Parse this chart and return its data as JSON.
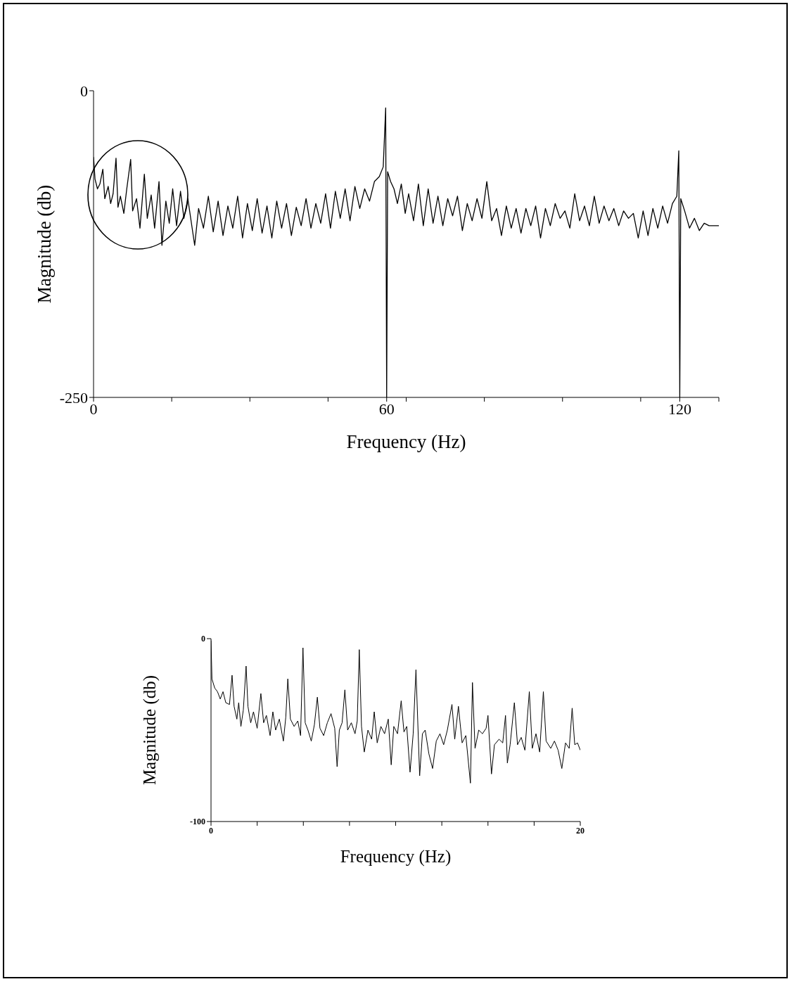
{
  "chart_data": [
    {
      "type": "line",
      "xlabel": "Frequency  (Hz)",
      "ylabel": "Magnitude (db)",
      "xlim": [
        0,
        128
      ],
      "ylim": [
        -250,
        0
      ],
      "xticks": [
        0,
        {
          "value": 16,
          "label": null
        },
        {
          "value": 32,
          "label": null
        },
        {
          "value": 48,
          "label": null
        },
        60,
        {
          "value": 64,
          "label": null
        },
        {
          "value": 80,
          "label": null
        },
        {
          "value": 96,
          "label": null
        },
        {
          "value": 112,
          "label": null
        },
        120,
        {
          "value": 128,
          "label": null
        }
      ],
      "yticks": [
        0,
        -250
      ],
      "x": [
        0,
        0.3,
        0.8,
        1.3,
        1.9,
        2.3,
        3.0,
        3.5,
        4.0,
        4.6,
        5.0,
        5.5,
        6.2,
        6.8,
        7.6,
        8.0,
        8.8,
        9.5,
        10.4,
        11.0,
        11.8,
        12.5,
        13.4,
        14.0,
        14.8,
        15.5,
        16.2,
        17.0,
        17.8,
        18.5,
        19.3,
        20.7,
        21.5,
        22.5,
        23.5,
        24.5,
        25.5,
        26.5,
        27.5,
        28.5,
        29.5,
        30.5,
        31.5,
        32.5,
        33.5,
        34.5,
        35.5,
        36.5,
        37.5,
        38.5,
        39.5,
        40.5,
        41.5,
        42.5,
        43.5,
        44.5,
        45.5,
        46.5,
        47.5,
        48.5,
        49.5,
        50.5,
        51.5,
        52.5,
        53.5,
        54.5,
        55.5,
        56.5,
        57.5,
        58.5,
        59.3,
        59.8,
        60.0,
        60.2,
        60.8,
        61.5,
        62.2,
        63.0,
        63.8,
        64.5,
        65.5,
        66.5,
        67.5,
        68.5,
        69.5,
        70.5,
        71.5,
        72.5,
        73.5,
        74.5,
        75.5,
        76.5,
        77.5,
        78.5,
        79.5,
        80.5,
        81.5,
        82.5,
        83.5,
        84.5,
        85.5,
        86.5,
        87.5,
        88.5,
        89.5,
        90.5,
        91.5,
        92.5,
        93.5,
        94.5,
        95.5,
        96.5,
        97.5,
        98.5,
        99.5,
        100.5,
        101.5,
        102.5,
        103.5,
        104.5,
        105.5,
        106.5,
        107.5,
        108.5,
        109.5,
        110.5,
        111.5,
        112.5,
        113.5,
        114.5,
        115.5,
        116.5,
        117.5,
        118.5,
        119.4,
        119.8,
        120.0,
        120.2,
        121,
        122,
        123,
        124,
        125,
        126,
        127,
        128
      ],
      "series": [
        {
          "color": "#000000",
          "values": [
            -54,
            -72,
            -80,
            -76,
            -64,
            -88,
            -78,
            -92,
            -84,
            -55,
            -95,
            -86,
            -100,
            -80,
            -56,
            -98,
            -88,
            -112,
            -68,
            -104,
            -85,
            -112,
            -74,
            -126,
            -90,
            -108,
            -80,
            -110,
            -82,
            -104,
            -88,
            -126,
            -96,
            -112,
            -86,
            -115,
            -90,
            -118,
            -94,
            -112,
            -86,
            -120,
            -92,
            -114,
            -88,
            -116,
            -94,
            -120,
            -90,
            -112,
            -92,
            -118,
            -95,
            -110,
            -88,
            -112,
            -92,
            -108,
            -84,
            -112,
            -82,
            -104,
            -80,
            -106,
            -78,
            -96,
            -80,
            -90,
            -74,
            -70,
            -62,
            -14,
            -250,
            -66,
            -74,
            -80,
            -92,
            -76,
            -100,
            -84,
            -106,
            -76,
            -110,
            -80,
            -108,
            -86,
            -110,
            -88,
            -102,
            -86,
            -114,
            -92,
            -106,
            -88,
            -104,
            -74,
            -106,
            -96,
            -118,
            -94,
            -112,
            -96,
            -116,
            -96,
            -110,
            -94,
            -120,
            -96,
            -110,
            -92,
            -104,
            -98,
            -112,
            -84,
            -106,
            -94,
            -110,
            -86,
            -108,
            -94,
            -106,
            -96,
            -110,
            -98,
            -104,
            -100,
            -120,
            -98,
            -118,
            -96,
            -112,
            -94,
            -108,
            -92,
            -86,
            -49,
            -250,
            -88,
            -98,
            -112,
            -104,
            -114,
            -108,
            -110,
            -110,
            -110
          ]
        }
      ]
    },
    {
      "type": "line",
      "xlabel": "Frequency  (Hz)",
      "ylabel": "Magnitude (db)",
      "xlim": [
        0,
        20
      ],
      "ylim": [
        -100,
        0
      ],
      "xticks": [
        0,
        {
          "value": 2.5,
          "label": null
        },
        {
          "value": 5,
          "label": null
        },
        {
          "value": 7.5,
          "label": null
        },
        {
          "value": 10,
          "label": null
        },
        {
          "value": 12.5,
          "label": null
        },
        {
          "value": 15,
          "label": null
        },
        {
          "value": 17.5,
          "label": null
        },
        20
      ],
      "yticks": [
        0,
        -100
      ],
      "x": [
        0,
        0.05,
        0.2,
        0.35,
        0.5,
        0.65,
        0.8,
        1.0,
        1.14,
        1.25,
        1.4,
        1.5,
        1.62,
        1.75,
        1.9,
        2.0,
        2.15,
        2.3,
        2.5,
        2.7,
        2.85,
        3.0,
        3.2,
        3.35,
        3.5,
        3.7,
        3.92,
        4.05,
        4.16,
        4.3,
        4.5,
        4.7,
        4.85,
        4.98,
        5.1,
        5.25,
        5.43,
        5.6,
        5.76,
        5.9,
        6.1,
        6.3,
        6.5,
        6.7,
        6.83,
        6.95,
        7.1,
        7.25,
        7.4,
        7.6,
        7.8,
        7.92,
        8.03,
        8.15,
        8.3,
        8.5,
        8.7,
        8.84,
        9.0,
        9.2,
        9.4,
        9.6,
        9.76,
        9.9,
        10.1,
        10.3,
        10.45,
        10.6,
        10.78,
        10.95,
        11.1,
        11.3,
        11.45,
        11.6,
        11.8,
        12.0,
        12.2,
        12.4,
        12.6,
        12.8,
        13.05,
        13.2,
        13.4,
        13.6,
        13.8,
        14.05,
        14.16,
        14.3,
        14.5,
        14.7,
        14.9,
        15.0,
        15.19,
        15.35,
        15.6,
        15.8,
        15.95,
        16.05,
        16.2,
        16.43,
        16.6,
        16.8,
        17.0,
        17.24,
        17.4,
        17.6,
        17.8,
        18.0,
        18.15,
        18.4,
        18.6,
        18.8,
        19.0,
        19.2,
        19.4,
        19.56,
        19.7,
        19.85,
        20.0
      ],
      "series": [
        {
          "color": "#000000",
          "values": [
            -1,
            -22,
            -27,
            -29,
            -33,
            -29,
            -35,
            -36,
            -20,
            -37,
            -44,
            -35,
            -48,
            -39,
            -15,
            -37,
            -46,
            -40,
            -49,
            -30,
            -46,
            -42,
            -53,
            -40,
            -50,
            -44,
            -56,
            -43,
            -22,
            -44,
            -48,
            -45,
            -53,
            -5,
            -46,
            -50,
            -56,
            -47,
            -32,
            -49,
            -53,
            -46,
            -41,
            -49,
            -70,
            -50,
            -46,
            -28,
            -50,
            -46,
            -52,
            -45,
            -6,
            -48,
            -62,
            -50,
            -55,
            -40,
            -57,
            -48,
            -52,
            -44,
            -69,
            -48,
            -52,
            -34,
            -51,
            -48,
            -73,
            -52,
            -17,
            -75,
            -52,
            -50,
            -63,
            -71,
            -56,
            -52,
            -58,
            -50,
            -36,
            -55,
            -37,
            -57,
            -53,
            -79,
            -24,
            -60,
            -50,
            -52,
            -49,
            -42,
            -74,
            -58,
            -55,
            -57,
            -42,
            -68,
            -58,
            -35,
            -58,
            -54,
            -61,
            -29,
            -60,
            -52,
            -62,
            -29,
            -56,
            -60,
            -56,
            -61,
            -71,
            -57,
            -60,
            -38,
            -58,
            -57,
            -61
          ]
        }
      ]
    }
  ]
}
